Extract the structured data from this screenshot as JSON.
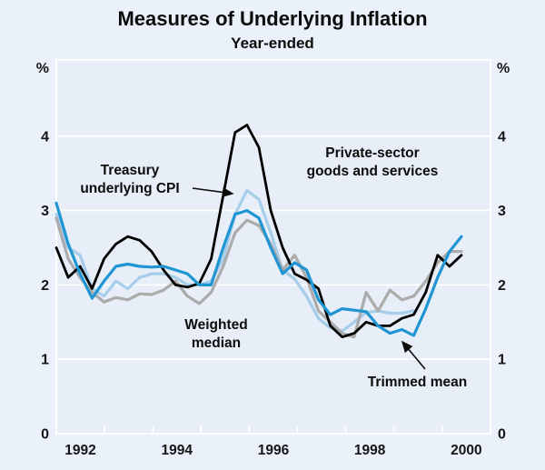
{
  "header": {
    "title": "Measures of Underlying Inflation",
    "subtitle": "Year-ended"
  },
  "axes": {
    "unit": "%",
    "y_ticks": [
      "0",
      "1",
      "2",
      "3",
      "4"
    ],
    "x_tick_years": [
      1993,
      1994,
      1995,
      1996,
      1997,
      1998,
      1999,
      2000
    ],
    "x_axis_labels": [
      "1992",
      "1994",
      "1996",
      "1998",
      "2000"
    ]
  },
  "labels": {
    "treasury": {
      "line1": "Treasury",
      "line2": "underlying CPI"
    },
    "private": {
      "line1": "Private-sector",
      "line2": "goods and services"
    },
    "weighted": {
      "line1": "Weighted",
      "line2": "median"
    },
    "trimmed": {
      "line1": "Trimmed mean"
    }
  },
  "chart_data": {
    "type": "line",
    "title": "Measures of Underlying Inflation",
    "subtitle": "Year-ended",
    "xlabel": "",
    "ylabel": "%",
    "ylim": [
      0,
      5
    ],
    "xlim": [
      "1991-Q4",
      "2001-Q1"
    ],
    "grid": "horizontal white gridlines at 1,2,3,4",
    "legend_position": "direct line annotations with arrows",
    "x_quarters": [
      "1991-Q4",
      "1992-Q1",
      "1992-Q2",
      "1992-Q3",
      "1992-Q4",
      "1993-Q1",
      "1993-Q2",
      "1993-Q3",
      "1993-Q4",
      "1994-Q1",
      "1994-Q2",
      "1994-Q3",
      "1994-Q4",
      "1995-Q1",
      "1995-Q2",
      "1995-Q3",
      "1995-Q4",
      "1996-Q1",
      "1996-Q2",
      "1996-Q3",
      "1996-Q4",
      "1997-Q1",
      "1997-Q2",
      "1997-Q3",
      "1997-Q4",
      "1998-Q1",
      "1998-Q2",
      "1998-Q3",
      "1998-Q4",
      "1999-Q1",
      "1999-Q2",
      "1999-Q3",
      "1999-Q4",
      "2000-Q1",
      "2000-Q2"
    ],
    "series": [
      {
        "name": "Treasury underlying CPI",
        "color": "#A6CDEA",
        "width": 3.2,
        "values": [
          2.95,
          2.5,
          2.4,
          1.95,
          1.85,
          2.05,
          1.95,
          2.1,
          2.15,
          2.15,
          2.1,
          2.0,
          2.0,
          2.05,
          2.35,
          2.95,
          3.27,
          3.15,
          2.7,
          2.2,
          2.08,
          1.85,
          1.55,
          1.42,
          1.38,
          1.5,
          1.63,
          1.65,
          1.62,
          1.62,
          1.65
        ]
      },
      {
        "name": "Weighted median",
        "color": "#ABABAB",
        "width": 3.2,
        "values": [
          2.9,
          2.35,
          2.1,
          1.9,
          1.77,
          1.83,
          1.8,
          1.88,
          1.87,
          1.93,
          2.05,
          1.85,
          1.75,
          1.9,
          2.25,
          2.7,
          2.87,
          2.8,
          2.55,
          2.2,
          2.4,
          2.1,
          1.65,
          1.5,
          1.35,
          1.3,
          1.9,
          1.65,
          1.93,
          1.8,
          1.85,
          2.05,
          2.3,
          2.45,
          2.45
        ]
      },
      {
        "name": "Private-sector goods and services",
        "color": "#000000",
        "width": 2.8,
        "values": [
          2.5,
          2.1,
          2.25,
          1.95,
          2.35,
          2.55,
          2.65,
          2.6,
          2.45,
          2.2,
          2.0,
          1.97,
          2.02,
          2.35,
          3.2,
          4.05,
          4.15,
          3.85,
          3.0,
          2.5,
          2.15,
          2.07,
          1.95,
          1.45,
          1.3,
          1.35,
          1.5,
          1.45,
          1.45,
          1.55,
          1.6,
          1.9,
          2.4,
          2.25,
          2.4
        ]
      },
      {
        "name": "Trimmed mean",
        "color": "#2095D3",
        "width": 3.2,
        "values": [
          3.1,
          2.55,
          2.15,
          1.82,
          2.05,
          2.25,
          2.28,
          2.25,
          2.24,
          2.25,
          2.2,
          2.15,
          2.0,
          2.0,
          2.5,
          2.95,
          3.0,
          2.9,
          2.5,
          2.15,
          2.3,
          2.2,
          1.8,
          1.6,
          1.68,
          1.66,
          1.64,
          1.45,
          1.35,
          1.4,
          1.32,
          1.68,
          2.1,
          2.45,
          2.65
        ]
      }
    ]
  }
}
